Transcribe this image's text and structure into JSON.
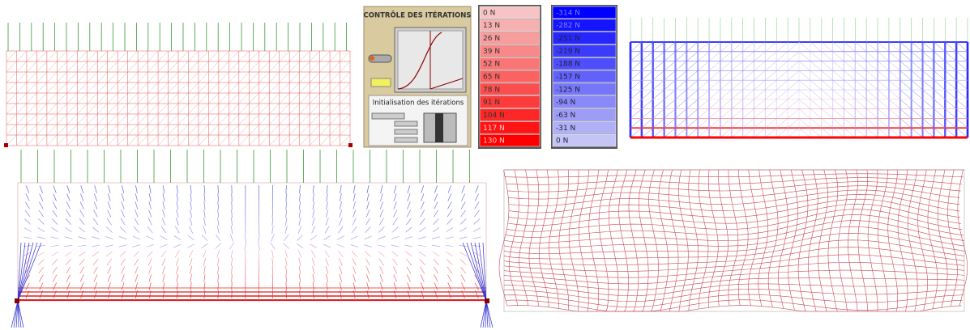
{
  "panel": {
    "title": "CONTRÔLE DES ITÉRATIONS",
    "subtitle": "Initialisation des itérations"
  },
  "legend_tension": [
    "0 N",
    "13 N",
    "26 N",
    "39 N",
    "52 N",
    "65 N",
    "78 N",
    "91 N",
    "104 N",
    "117 N",
    "130 N"
  ],
  "legend_compression": [
    "-314 N",
    "-282 N",
    "-251 N",
    "-219 N",
    "-188 N",
    "-157 N",
    "-125 N",
    "-94 N",
    "-63 N",
    "-31 N",
    "0 N"
  ]
}
